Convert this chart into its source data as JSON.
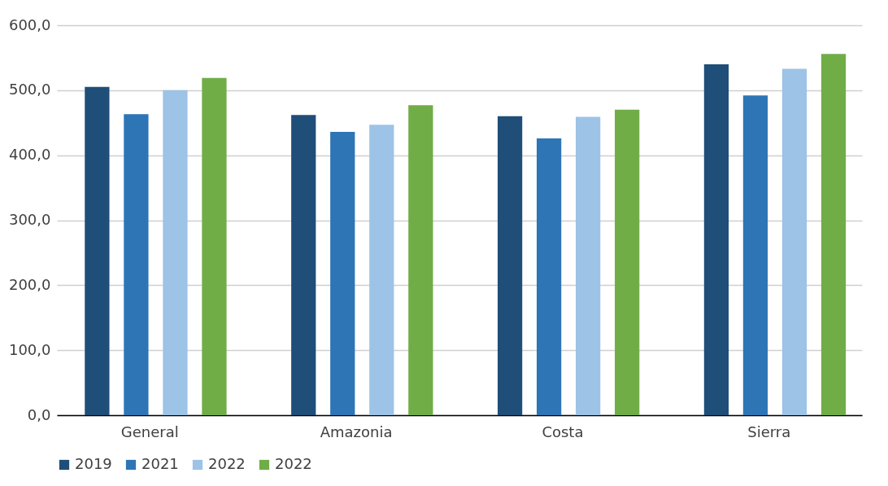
{
  "chart_data": {
    "type": "bar",
    "categories": [
      "General",
      "Amazonia",
      "Costa",
      "Sierra"
    ],
    "series": [
      {
        "name": "2019",
        "color": "#1f4e79",
        "values": [
          505,
          462,
          460,
          540
        ]
      },
      {
        "name": "2021",
        "color": "#2e75b6",
        "values": [
          463,
          436,
          426,
          492
        ]
      },
      {
        "name": "2022",
        "color": "#9dc3e6",
        "values": [
          500,
          447,
          459,
          533
        ]
      },
      {
        "name": "2022",
        "color": "#70ad47",
        "values": [
          519,
          477,
          470,
          556
        ]
      }
    ],
    "ylim": [
      0,
      600
    ],
    "yticks": [
      {
        "value": 0,
        "label": "0,0"
      },
      {
        "value": 100,
        "label": "100,0"
      },
      {
        "value": 200,
        "label": "200,0"
      },
      {
        "value": 300,
        "label": "300,0"
      },
      {
        "value": 400,
        "label": "400,0"
      },
      {
        "value": 500,
        "label": "500,0"
      },
      {
        "value": 600,
        "label": "600,0"
      }
    ],
    "grid": "y",
    "legend": "bottom"
  }
}
